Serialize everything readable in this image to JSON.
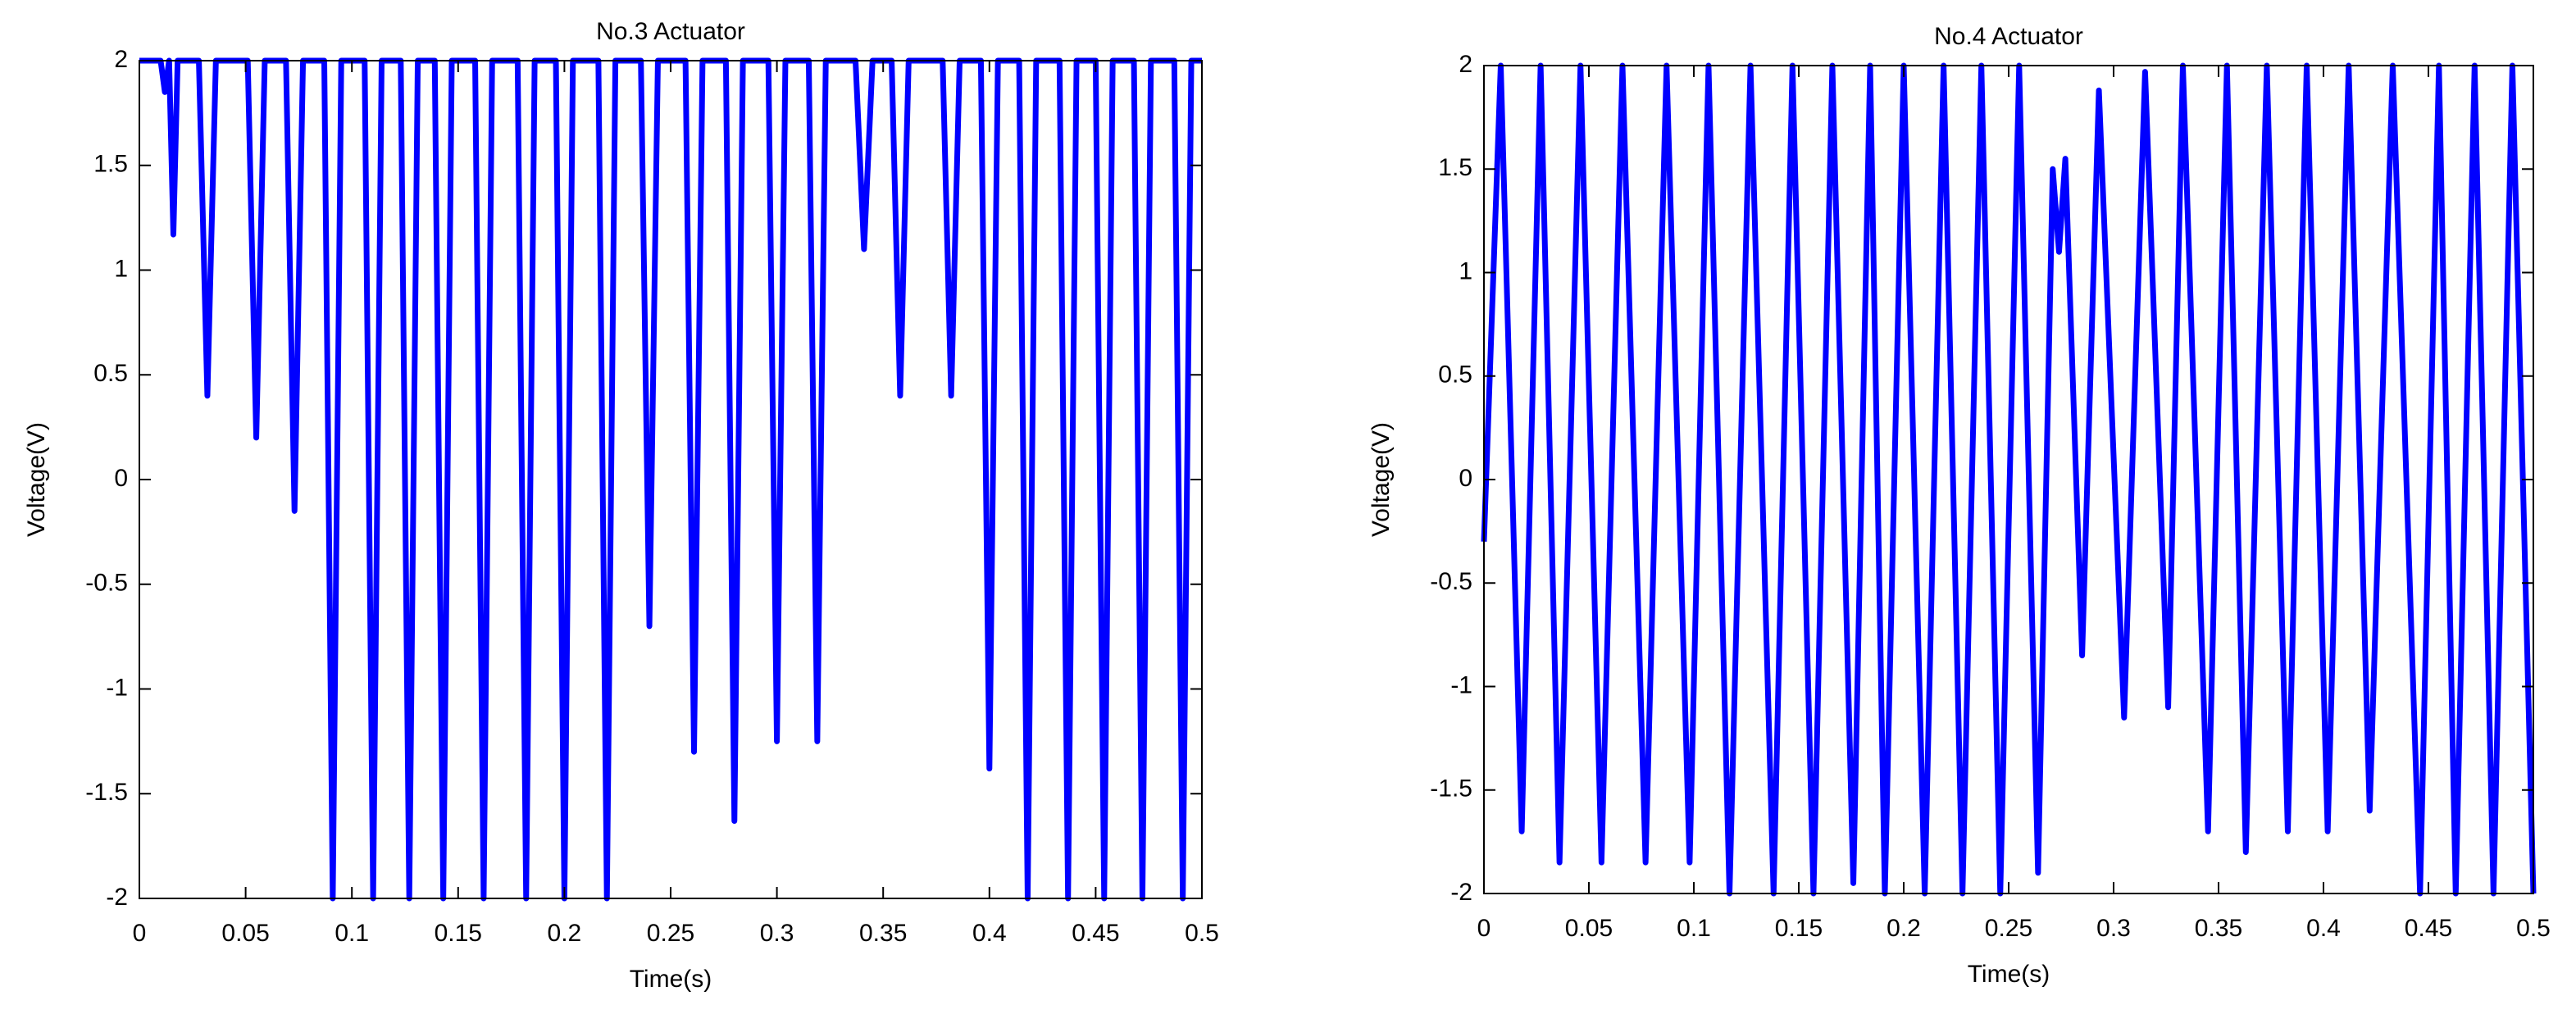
{
  "chart_data": [
    {
      "type": "line",
      "title": "No.3 Actuator",
      "x_label": "Time(s)",
      "y_label": "Voltage(V)",
      "x": [
        0,
        0.01,
        0.012,
        0.014,
        0.016,
        0.018,
        0.028,
        0.032,
        0.036,
        0.051,
        0.055,
        0.059,
        0.069,
        0.073,
        0.077,
        0.087,
        0.091,
        0.095,
        0.106,
        0.11,
        0.114,
        0.123,
        0.127,
        0.131,
        0.139,
        0.143,
        0.147,
        0.158,
        0.162,
        0.166,
        0.178,
        0.182,
        0.186,
        0.196,
        0.2,
        0.204,
        0.216,
        0.22,
        0.224,
        0.236,
        0.24,
        0.244,
        0.257,
        0.261,
        0.265,
        0.276,
        0.28,
        0.284,
        0.296,
        0.3,
        0.304,
        0.315,
        0.319,
        0.323,
        0.337,
        0.341,
        0.345,
        0.354,
        0.358,
        0.362,
        0.378,
        0.382,
        0.386,
        0.396,
        0.4,
        0.404,
        0.414,
        0.418,
        0.422,
        0.433,
        0.437,
        0.441,
        0.45,
        0.454,
        0.458,
        0.468,
        0.472,
        0.476,
        0.487,
        0.491,
        0.495,
        0.5
      ],
      "series": [
        {
          "color": "#0000ff",
          "values": [
            2,
            2,
            1.85,
            2,
            1.17,
            2,
            2,
            0.4,
            2,
            2,
            0.2,
            2,
            2,
            -0.15,
            2,
            2,
            -2,
            2,
            2,
            -2,
            2,
            2,
            -2,
            2,
            2,
            -2,
            2,
            2,
            -2,
            2,
            2,
            -2,
            2,
            2,
            -2,
            2,
            2,
            -2,
            2,
            2,
            -0.7,
            2,
            2,
            -1.3,
            2,
            2,
            -1.63,
            2,
            2,
            -1.25,
            2,
            2,
            -1.25,
            2,
            2,
            1.1,
            2,
            2,
            0.4,
            2,
            2,
            0.4,
            2,
            2,
            -1.38,
            2,
            2,
            -2,
            2,
            2,
            -2,
            2,
            2,
            -2,
            2,
            2,
            -2,
            2,
            2,
            -2,
            2,
            2
          ]
        }
      ],
      "xlim": [
        0,
        0.5
      ],
      "xticks": [
        0,
        0.05,
        0.1,
        0.15,
        0.2,
        0.25,
        0.3,
        0.35,
        0.4,
        0.45,
        0.5
      ],
      "ylim": [
        -2,
        2
      ],
      "yticks": [
        -2,
        -1.5,
        -1,
        -0.5,
        0,
        0.5,
        1,
        1.5,
        2
      ]
    },
    {
      "type": "line",
      "title": "No.4 Actuator",
      "x_label": "Time(s)",
      "y_label": "Voltage(V)",
      "x": [
        0,
        0.008,
        0.018,
        0.027,
        0.036,
        0.046,
        0.056,
        0.066,
        0.077,
        0.087,
        0.098,
        0.107,
        0.117,
        0.127,
        0.138,
        0.147,
        0.157,
        0.166,
        0.176,
        0.184,
        0.191,
        0.2,
        0.21,
        0.219,
        0.228,
        0.237,
        0.246,
        0.255,
        0.264,
        0.271,
        0.274,
        0.277,
        0.285,
        0.293,
        0.305,
        0.315,
        0.326,
        0.333,
        0.345,
        0.354,
        0.363,
        0.373,
        0.383,
        0.392,
        0.402,
        0.412,
        0.422,
        0.433,
        0.446,
        0.455,
        0.463,
        0.472,
        0.481,
        0.49,
        0.5
      ],
      "series": [
        {
          "color": "#0000ff",
          "values": [
            -0.3,
            2,
            -1.7,
            2,
            -1.85,
            2,
            -1.85,
            2,
            -1.85,
            2,
            -1.85,
            2,
            -2,
            2,
            -2,
            2,
            -2,
            2,
            -1.95,
            2,
            -2,
            2,
            -2,
            2,
            -2,
            2,
            -2,
            2,
            -1.9,
            1.5,
            1.1,
            1.55,
            -0.85,
            1.88,
            -1.15,
            1.97,
            -1.1,
            2,
            -1.7,
            2,
            -1.8,
            2,
            -1.7,
            2,
            -1.7,
            2,
            -1.6,
            2,
            -2,
            2,
            -2,
            2,
            -2,
            2,
            -2
          ]
        }
      ],
      "xlim": [
        0,
        0.5
      ],
      "xticks": [
        0,
        0.05,
        0.1,
        0.15,
        0.2,
        0.25,
        0.3,
        0.35,
        0.4,
        0.45,
        0.5
      ],
      "ylim": [
        -2,
        2
      ],
      "yticks": [
        -2,
        -1.5,
        -1,
        -0.5,
        0,
        0.5,
        1,
        1.5,
        2
      ]
    }
  ]
}
